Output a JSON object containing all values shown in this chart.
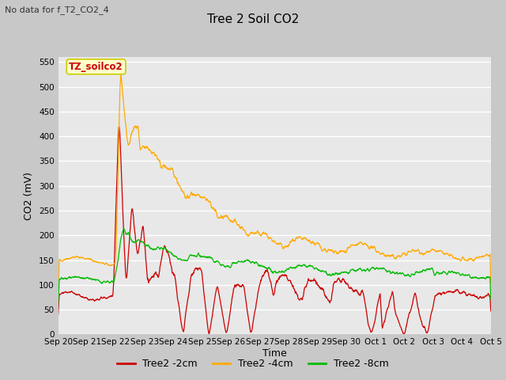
{
  "title": "Tree 2 Soil CO2",
  "subtitle": "No data for f_T2_CO2_4",
  "ylabel": "CO2 (mV)",
  "xlabel": "Time",
  "annotation": "TZ_soilco2",
  "ylim": [
    0,
    560
  ],
  "yticks": [
    0,
    50,
    100,
    150,
    200,
    250,
    300,
    350,
    400,
    450,
    500,
    550
  ],
  "xtick_labels": [
    "Sep 20",
    "Sep 21",
    "Sep 22",
    "Sep 23",
    "Sep 24",
    "Sep 25",
    "Sep 26",
    "Sep 27",
    "Sep 28",
    "Sep 29",
    "Sep 30",
    "Oct 1",
    "Oct 2",
    "Oct 3",
    "Oct 4",
    "Oct 5"
  ],
  "line_colors": {
    "2cm": "#cc0000",
    "4cm": "#ffaa00",
    "8cm": "#00bb00"
  },
  "legend_labels": [
    "Tree2 -2cm",
    "Tree2 -4cm",
    "Tree2 -8cm"
  ],
  "fig_bg_color": "#c8c8c8",
  "plot_bg_color": "#e8e8e8",
  "grid_color": "#ffffff",
  "title_fontsize": 11,
  "subtitle_fontsize": 8,
  "tick_fontsize": 7.5,
  "ylabel_fontsize": 9,
  "xlabel_fontsize": 9,
  "legend_fontsize": 9
}
